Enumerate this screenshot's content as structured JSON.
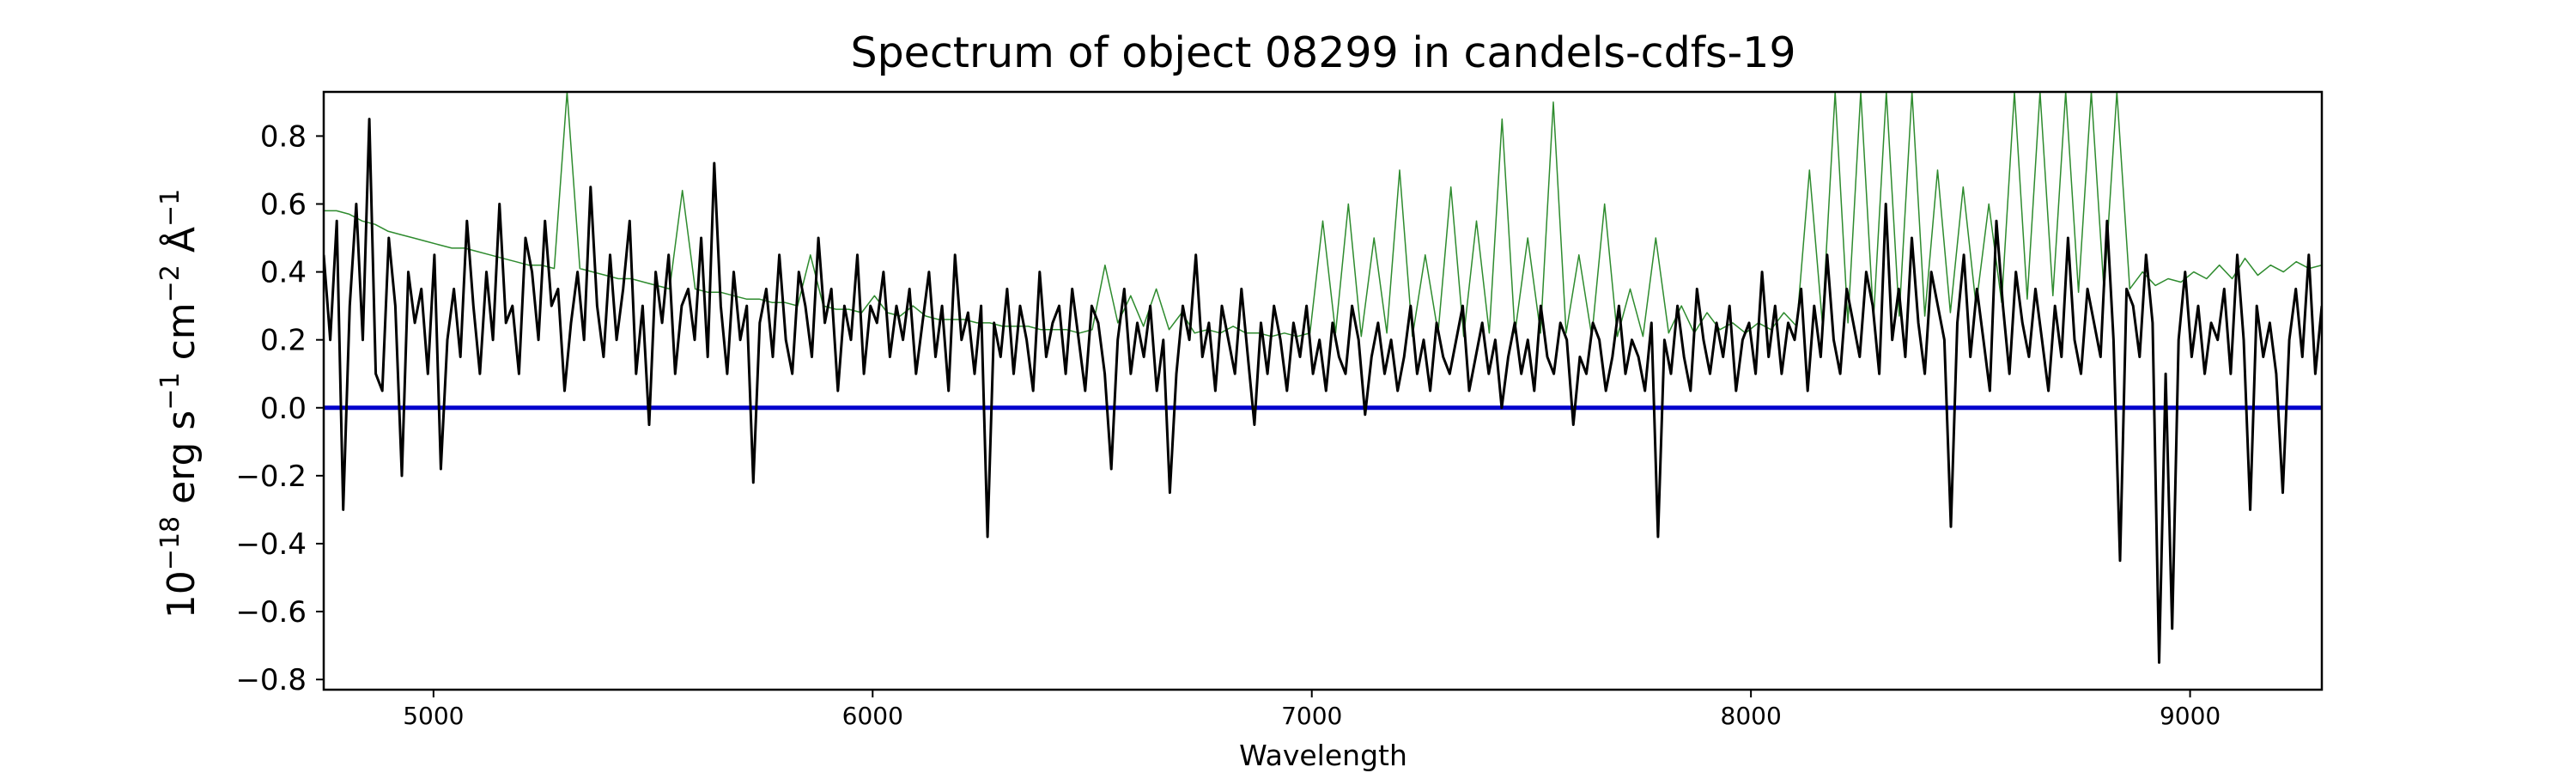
{
  "chart_data": {
    "type": "line",
    "title": "Spectrum of object 08299 in candels-cdfs-19",
    "xlabel": "Wavelength",
    "ylabel_parts": {
      "base": "10",
      "exp1": "−18",
      "erg": " erg s",
      "exp2": "−1",
      "cm": " cm",
      "exp3": "−2",
      "ang": " Å",
      "exp4": "−1"
    },
    "xlim": [
      4750,
      9300
    ],
    "ylim": [
      -0.83,
      0.93
    ],
    "xticks": [
      5000,
      6000,
      7000,
      8000,
      9000
    ],
    "xtick_labels": [
      "5000",
      "6000",
      "7000",
      "8000",
      "9000"
    ],
    "yticks": [
      -0.8,
      -0.6,
      -0.4,
      -0.2,
      0.0,
      0.2,
      0.4,
      0.6,
      0.8
    ],
    "ytick_labels": [
      "−0.8",
      "−0.6",
      "−0.4",
      "−0.2",
      "0.0",
      "0.2",
      "0.4",
      "0.6",
      "0.8"
    ],
    "grid": false,
    "series": [
      {
        "role": "flux",
        "color": "#000000",
        "width": 3,
        "x_start": 4750,
        "x_end": 9300,
        "values": [
          0.45,
          0.2,
          0.55,
          -0.3,
          0.3,
          0.6,
          0.2,
          0.85,
          0.1,
          0.05,
          0.5,
          0.3,
          -0.2,
          0.4,
          0.25,
          0.35,
          0.1,
          0.45,
          -0.18,
          0.2,
          0.35,
          0.15,
          0.55,
          0.3,
          0.1,
          0.4,
          0.2,
          0.6,
          0.25,
          0.3,
          0.1,
          0.5,
          0.4,
          0.2,
          0.55,
          0.3,
          0.35,
          0.05,
          0.25,
          0.4,
          0.2,
          0.65,
          0.3,
          0.15,
          0.45,
          0.2,
          0.35,
          0.55,
          0.1,
          0.3,
          -0.05,
          0.4,
          0.25,
          0.45,
          0.1,
          0.3,
          0.35,
          0.2,
          0.5,
          0.15,
          0.72,
          0.3,
          0.1,
          0.4,
          0.2,
          0.3,
          -0.22,
          0.25,
          0.35,
          0.15,
          0.45,
          0.2,
          0.1,
          0.4,
          0.3,
          0.15,
          0.5,
          0.25,
          0.35,
          0.05,
          0.3,
          0.2,
          0.45,
          0.1,
          0.3,
          0.25,
          0.4,
          0.15,
          0.3,
          0.2,
          0.35,
          0.1,
          0.25,
          0.4,
          0.15,
          0.3,
          0.05,
          0.45,
          0.2,
          0.28,
          0.1,
          0.3,
          -0.38,
          0.25,
          0.15,
          0.35,
          0.1,
          0.3,
          0.2,
          0.05,
          0.4,
          0.15,
          0.25,
          0.3,
          0.1,
          0.35,
          0.2,
          0.05,
          0.3,
          0.25,
          0.1,
          -0.18,
          0.2,
          0.35,
          0.1,
          0.25,
          0.15,
          0.3,
          0.05,
          0.2,
          -0.25,
          0.1,
          0.3,
          0.2,
          0.45,
          0.15,
          0.25,
          0.05,
          0.3,
          0.2,
          0.1,
          0.35,
          0.15,
          -0.05,
          0.25,
          0.1,
          0.3,
          0.2,
          0.05,
          0.25,
          0.15,
          0.3,
          0.1,
          0.2,
          0.05,
          0.25,
          0.15,
          0.1,
          0.3,
          0.2,
          -0.02,
          0.15,
          0.25,
          0.1,
          0.2,
          0.05,
          0.15,
          0.3,
          0.1,
          0.2,
          0.05,
          0.25,
          0.15,
          0.1,
          0.2,
          0.3,
          0.05,
          0.15,
          0.25,
          0.1,
          0.2,
          0.0,
          0.15,
          0.25,
          0.1,
          0.2,
          0.05,
          0.3,
          0.15,
          0.1,
          0.25,
          0.2,
          -0.05,
          0.15,
          0.1,
          0.25,
          0.2,
          0.05,
          0.15,
          0.3,
          0.1,
          0.2,
          0.15,
          0.05,
          0.25,
          -0.38,
          0.2,
          0.1,
          0.3,
          0.15,
          0.05,
          0.35,
          0.2,
          0.1,
          0.25,
          0.15,
          0.3,
          0.05,
          0.2,
          0.25,
          0.1,
          0.4,
          0.15,
          0.3,
          0.1,
          0.25,
          0.2,
          0.35,
          0.05,
          0.3,
          0.15,
          0.45,
          0.2,
          0.1,
          0.35,
          0.25,
          0.15,
          0.4,
          0.3,
          0.1,
          0.6,
          0.2,
          0.35,
          0.15,
          0.5,
          0.25,
          0.1,
          0.4,
          0.3,
          0.2,
          -0.35,
          0.25,
          0.45,
          0.15,
          0.35,
          0.2,
          0.05,
          0.55,
          0.3,
          0.1,
          0.4,
          0.25,
          0.15,
          0.35,
          0.2,
          0.05,
          0.3,
          0.15,
          0.5,
          0.2,
          0.1,
          0.35,
          0.25,
          0.15,
          0.55,
          0.2,
          -0.45,
          0.35,
          0.3,
          0.15,
          0.45,
          0.25,
          -0.75,
          0.1,
          -0.65,
          0.2,
          0.4,
          0.15,
          0.3,
          0.1,
          0.25,
          0.2,
          0.35,
          0.1,
          0.45,
          0.2,
          -0.3,
          0.3,
          0.15,
          0.25,
          0.1,
          -0.25,
          0.2,
          0.35,
          0.15,
          0.45,
          0.1,
          0.3
        ]
      },
      {
        "role": "error",
        "color": "#2e8b2e",
        "width": 1.5,
        "x_start": 4750,
        "x_end": 9300,
        "values": [
          0.58,
          0.58,
          0.57,
          0.55,
          0.54,
          0.52,
          0.51,
          0.5,
          0.49,
          0.48,
          0.47,
          0.47,
          0.46,
          0.45,
          0.44,
          0.43,
          0.42,
          0.42,
          0.41,
          0.93,
          0.41,
          0.4,
          0.39,
          0.38,
          0.38,
          0.37,
          0.36,
          0.35,
          0.64,
          0.35,
          0.34,
          0.34,
          0.33,
          0.32,
          0.32,
          0.31,
          0.31,
          0.3,
          0.45,
          0.3,
          0.29,
          0.29,
          0.28,
          0.33,
          0.28,
          0.27,
          0.3,
          0.27,
          0.26,
          0.26,
          0.26,
          0.25,
          0.25,
          0.24,
          0.24,
          0.24,
          0.23,
          0.23,
          0.23,
          0.22,
          0.23,
          0.42,
          0.25,
          0.33,
          0.24,
          0.35,
          0.23,
          0.28,
          0.22,
          0.23,
          0.22,
          0.24,
          0.22,
          0.22,
          0.21,
          0.22,
          0.21,
          0.22,
          0.55,
          0.22,
          0.6,
          0.21,
          0.5,
          0.22,
          0.7,
          0.21,
          0.45,
          0.22,
          0.65,
          0.21,
          0.55,
          0.22,
          0.85,
          0.22,
          0.5,
          0.22,
          0.9,
          0.22,
          0.45,
          0.21,
          0.6,
          0.21,
          0.35,
          0.21,
          0.5,
          0.22,
          0.3,
          0.22,
          0.28,
          0.23,
          0.25,
          0.22,
          0.25,
          0.23,
          0.28,
          0.24,
          0.7,
          0.25,
          0.93,
          0.25,
          0.93,
          0.26,
          0.93,
          0.27,
          0.93,
          0.27,
          0.7,
          0.28,
          0.65,
          0.3,
          0.6,
          0.31,
          0.93,
          0.32,
          0.93,
          0.33,
          0.93,
          0.34,
          0.93,
          0.34,
          0.93,
          0.35,
          0.4,
          0.36,
          0.38,
          0.37,
          0.4,
          0.38,
          0.42,
          0.38,
          0.44,
          0.39,
          0.42,
          0.4,
          0.43,
          0.41,
          0.42
        ]
      },
      {
        "role": "zero",
        "color": "#0000cc",
        "width": 5,
        "x_start": 4750,
        "x_end": 9300,
        "values": [
          0,
          0
        ]
      }
    ]
  }
}
